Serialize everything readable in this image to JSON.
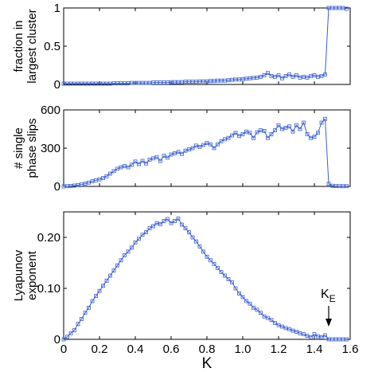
{
  "colors": {
    "series": "#3a5fd0",
    "axes": "#000000"
  },
  "chart_data": [
    {
      "type": "line",
      "ylabel_lines": [
        "fraction in",
        "largest cluster"
      ],
      "xlim": [
        0,
        1.6
      ],
      "ylim": [
        0,
        1
      ],
      "yticks": [
        0,
        0.5,
        1
      ],
      "ytick_labels": [
        "0",
        "0.5",
        "1"
      ],
      "series": [
        {
          "x": [
            0.0,
            0.02,
            0.04,
            0.06,
            0.08,
            0.1,
            0.12,
            0.14,
            0.16,
            0.18,
            0.2,
            0.22,
            0.24,
            0.26,
            0.28,
            0.3,
            0.32,
            0.34,
            0.36,
            0.38,
            0.4,
            0.42,
            0.44,
            0.46,
            0.48,
            0.5,
            0.52,
            0.54,
            0.56,
            0.58,
            0.6,
            0.62,
            0.64,
            0.66,
            0.68,
            0.7,
            0.72,
            0.74,
            0.76,
            0.78,
            0.8,
            0.82,
            0.84,
            0.86,
            0.88,
            0.9,
            0.92,
            0.94,
            0.96,
            0.98,
            1.0,
            1.02,
            1.04,
            1.06,
            1.08,
            1.1,
            1.12,
            1.14,
            1.16,
            1.18,
            1.2,
            1.22,
            1.24,
            1.26,
            1.28,
            1.3,
            1.32,
            1.34,
            1.36,
            1.38,
            1.4,
            1.42,
            1.44,
            1.46,
            1.48,
            1.5,
            1.52,
            1.54,
            1.56,
            1.58
          ],
          "y": [
            0.01,
            0.01,
            0.01,
            0.01,
            0.01,
            0.01,
            0.01,
            0.01,
            0.01,
            0.01,
            0.01,
            0.01,
            0.01,
            0.01,
            0.015,
            0.015,
            0.015,
            0.015,
            0.015,
            0.02,
            0.02,
            0.02,
            0.02,
            0.02,
            0.02,
            0.025,
            0.025,
            0.025,
            0.025,
            0.025,
            0.03,
            0.03,
            0.03,
            0.03,
            0.035,
            0.035,
            0.035,
            0.035,
            0.04,
            0.04,
            0.04,
            0.045,
            0.045,
            0.05,
            0.05,
            0.05,
            0.055,
            0.06,
            0.065,
            0.065,
            0.07,
            0.075,
            0.08,
            0.085,
            0.09,
            0.1,
            0.12,
            0.15,
            0.11,
            0.1,
            0.12,
            0.08,
            0.11,
            0.13,
            0.1,
            0.12,
            0.09,
            0.1,
            0.09,
            0.11,
            0.12,
            0.1,
            0.11,
            0.13,
            1.0,
            1.0,
            1.0,
            1.0,
            1.0,
            0.99
          ]
        }
      ]
    },
    {
      "type": "line",
      "ylabel_lines": [
        "# single",
        "phase slips"
      ],
      "xlim": [
        0,
        1.6
      ],
      "ylim": [
        0,
        600
      ],
      "yticks": [
        0,
        300,
        600
      ],
      "ytick_labels": [
        "0",
        "300",
        "600"
      ],
      "series": [
        {
          "x": [
            0.0,
            0.02,
            0.04,
            0.06,
            0.08,
            0.1,
            0.12,
            0.14,
            0.16,
            0.18,
            0.2,
            0.22,
            0.24,
            0.26,
            0.28,
            0.3,
            0.32,
            0.34,
            0.36,
            0.38,
            0.4,
            0.42,
            0.44,
            0.46,
            0.48,
            0.5,
            0.52,
            0.54,
            0.56,
            0.58,
            0.6,
            0.62,
            0.64,
            0.66,
            0.68,
            0.7,
            0.72,
            0.74,
            0.76,
            0.78,
            0.8,
            0.82,
            0.84,
            0.86,
            0.88,
            0.9,
            0.92,
            0.94,
            0.96,
            0.98,
            1.0,
            1.02,
            1.04,
            1.06,
            1.08,
            1.1,
            1.12,
            1.14,
            1.16,
            1.18,
            1.2,
            1.22,
            1.24,
            1.26,
            1.28,
            1.3,
            1.32,
            1.34,
            1.36,
            1.38,
            1.4,
            1.42,
            1.44,
            1.46,
            1.48,
            1.5,
            1.52,
            1.54,
            1.56,
            1.58
          ],
          "y": [
            0,
            2,
            4,
            6,
            10,
            15,
            22,
            30,
            40,
            48,
            55,
            65,
            80,
            100,
            120,
            138,
            150,
            160,
            150,
            170,
            195,
            175,
            200,
            180,
            210,
            220,
            230,
            200,
            240,
            225,
            250,
            260,
            270,
            255,
            280,
            290,
            300,
            320,
            310,
            325,
            340,
            330,
            300,
            330,
            355,
            370,
            380,
            400,
            420,
            395,
            410,
            430,
            420,
            380,
            425,
            440,
            435,
            380,
            410,
            440,
            480,
            450,
            460,
            470,
            430,
            480,
            450,
            500,
            410,
            380,
            390,
            420,
            500,
            530,
            20,
            5,
            3,
            2,
            2,
            2
          ]
        }
      ]
    },
    {
      "type": "line",
      "xlabel": "K",
      "ylabel_lines": [
        "Lyapunov",
        "exponent"
      ],
      "xlim": [
        0,
        1.6
      ],
      "ylim": [
        0,
        0.25
      ],
      "yticks": [
        0,
        0.1,
        0.2
      ],
      "ytick_labels": [
        "0",
        "0.10",
        "0.20"
      ],
      "xticks": [
        0,
        0.2,
        0.4,
        0.6,
        0.8,
        1.0,
        1.2,
        1.4,
        1.6
      ],
      "xtick_labels": [
        "0",
        "0.2",
        "0.4",
        "0.6",
        "0.8",
        "1.0",
        "1.2",
        "1.4",
        "1.6"
      ],
      "annotation": {
        "base": "K",
        "sub": "E",
        "x": 1.48
      },
      "series": [
        {
          "x": [
            0.0,
            0.02,
            0.04,
            0.06,
            0.08,
            0.1,
            0.12,
            0.14,
            0.16,
            0.18,
            0.2,
            0.22,
            0.24,
            0.26,
            0.28,
            0.3,
            0.32,
            0.34,
            0.36,
            0.38,
            0.4,
            0.42,
            0.44,
            0.46,
            0.48,
            0.5,
            0.52,
            0.54,
            0.56,
            0.58,
            0.6,
            0.62,
            0.64,
            0.66,
            0.68,
            0.7,
            0.72,
            0.74,
            0.76,
            0.78,
            0.8,
            0.82,
            0.84,
            0.86,
            0.88,
            0.9,
            0.92,
            0.94,
            0.96,
            0.98,
            1.0,
            1.02,
            1.04,
            1.06,
            1.08,
            1.1,
            1.12,
            1.14,
            1.16,
            1.18,
            1.2,
            1.22,
            1.24,
            1.26,
            1.28,
            1.3,
            1.32,
            1.34,
            1.36,
            1.38,
            1.4,
            1.42,
            1.44,
            1.46,
            1.48,
            1.5,
            1.52,
            1.54,
            1.56,
            1.58
          ],
          "y": [
            0.0,
            0.005,
            0.012,
            0.018,
            0.03,
            0.04,
            0.052,
            0.062,
            0.075,
            0.085,
            0.095,
            0.105,
            0.115,
            0.125,
            0.135,
            0.145,
            0.155,
            0.165,
            0.172,
            0.18,
            0.19,
            0.197,
            0.205,
            0.21,
            0.218,
            0.222,
            0.228,
            0.226,
            0.232,
            0.236,
            0.228,
            0.232,
            0.237,
            0.225,
            0.218,
            0.21,
            0.2,
            0.192,
            0.182,
            0.172,
            0.162,
            0.155,
            0.148,
            0.14,
            0.132,
            0.125,
            0.118,
            0.112,
            0.1,
            0.09,
            0.083,
            0.075,
            0.07,
            0.062,
            0.058,
            0.052,
            0.045,
            0.042,
            0.038,
            0.032,
            0.028,
            0.025,
            0.022,
            0.02,
            0.017,
            0.015,
            0.012,
            0.01,
            0.007,
            0.004,
            0.01,
            0.006,
            0.004,
            0.008,
            0.0,
            0.0,
            0.0,
            0.0,
            0.0,
            0.0
          ]
        }
      ]
    }
  ]
}
